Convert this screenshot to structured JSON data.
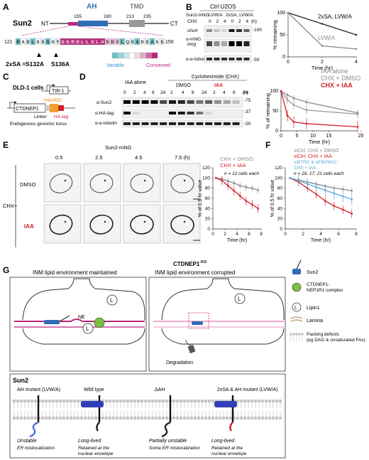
{
  "panels": {
    "A": "A",
    "B": "B",
    "C": "C",
    "D": "D",
    "E": "E",
    "F": "F",
    "G": "G"
  },
  "colors": {
    "red": "#d0202a",
    "blue": "#2f6db5",
    "ltblue": "#5aa8d8",
    "gray": "#8a8a8a",
    "magenta": "#b8267a",
    "green": "#7cc242",
    "orange": "#f0a030",
    "cyan": "#6ec3c9"
  },
  "panelA": {
    "protein": "Sun2",
    "nt": "NT",
    "ct": "CT",
    "ah": "AH",
    "tmd": "TMD",
    "n155": "155",
    "n180": "180",
    "n213": "213",
    "n235": "235",
    "n121": "121",
    "n150": "150",
    "residues": [
      "R",
      "A",
      "D",
      "L",
      "S",
      "S",
      "S",
      "G",
      "Y",
      "S",
      "S",
      "R",
      "D",
      "L",
      "L",
      "S",
      "L",
      "A",
      "S",
      "D",
      "V",
      "L",
      "Q",
      "G",
      "A",
      "D",
      "S",
      "A",
      "S",
      "S"
    ],
    "mutant_label": "2xSA =",
    "mut1": "S132A",
    "mut2": "S136A",
    "variable": "Variable",
    "conserved": "Conserved"
  },
  "panelB": {
    "cell": "Ctrl U2OS",
    "construct": "Sun2-mNG",
    "lvwa": "LVW/A",
    "sa_lvwa": "2xSA, LVW/A",
    "chx": "CHX",
    "times": [
      "0",
      "2",
      "4",
      "0",
      "2",
      "4"
    ],
    "h": "(h)",
    "short": "short",
    "long": "long",
    "amng": "α-mNG",
    "atub": "α-α-tubulin",
    "mw100": "-100",
    "mw50": "-50"
  },
  "chartB": {
    "type": "line",
    "ylabel": "% remaining",
    "xlabel": "Time (hr)",
    "x": [
      0,
      2,
      4
    ],
    "xlim": [
      0,
      4
    ],
    "ylim": [
      0,
      100
    ],
    "yticks": [
      0,
      50,
      100
    ],
    "xticks": [
      0,
      2,
      4
    ],
    "series": [
      {
        "name": "2xSA, LVW/A",
        "values": [
          100,
          75,
          50
        ]
      },
      {
        "name": "LVW/A",
        "values": [
          100,
          25,
          18
        ]
      }
    ]
  },
  "panelC": {
    "cells": "DLD-1 cells",
    "tir": "TIR-1",
    "gene": "CTDNEP1",
    "miniaid": "miniAID",
    "linker": "Linker",
    "hatag": "HA-tag",
    "locus": "Endogenous genomic locus"
  },
  "panelD": {
    "iaa_alone": "IAA alone",
    "chx": "Cycloheximide (CHX)",
    "dmso": "DMSO",
    "iaa": "IAA",
    "times": [
      "0",
      "2",
      "4",
      "8",
      "24",
      "2",
      "4",
      "8",
      "24",
      "2",
      "4",
      "8",
      "24"
    ],
    "h": "(h)",
    "asun2": "α-Sun2",
    "aha": "α-HA-tag",
    "atub": "α-α-tubulin",
    "mw75": "-75",
    "mw37": "-37",
    "mw50": "-50"
  },
  "chartD": {
    "type": "line",
    "ylabel": "% of remaining",
    "xlabel": "Time (hr)",
    "x": [
      0,
      2,
      4,
      8,
      24
    ],
    "xlim": [
      0,
      24
    ],
    "ylim": [
      0,
      100
    ],
    "yticks": [
      0,
      50,
      100
    ],
    "xticks": [
      0,
      5,
      10,
      15,
      25
    ],
    "series": [
      {
        "name": "IAA alone",
        "values": [
          100,
          90,
          82,
          72,
          45
        ]
      },
      {
        "name": "CHX + DMSO",
        "values": [
          100,
          78,
          65,
          52,
          42
        ]
      },
      {
        "name": "CHX + IAA",
        "values": [
          100,
          38,
          22,
          18,
          10
        ]
      }
    ]
  },
  "panelE": {
    "construct": "Sun2-mNG",
    "times": [
      "0.5",
      "2.5",
      "4.5",
      "7.5 (h)"
    ],
    "chx": "CHX+",
    "dmso": "DMSO",
    "iaa": "IAA"
  },
  "chartE": {
    "type": "line",
    "ylabel": "% of 0.5 hr value",
    "xlabel": "Time (hr)",
    "n": "n = 12 cells each",
    "x": [
      0.5,
      1.5,
      2.5,
      3.5,
      4.5,
      5.5,
      6.5,
      7.5
    ],
    "xlim": [
      0,
      8
    ],
    "ylim": [
      0,
      120
    ],
    "yticks": [
      0,
      20,
      40,
      60,
      80,
      100,
      120
    ],
    "xticks": [
      0,
      2,
      4,
      6,
      8
    ],
    "series": [
      {
        "name": "CHX + DMSO",
        "values": [
          100,
          98,
          94,
          90,
          85,
          82,
          80,
          76
        ]
      },
      {
        "name": "CHX + IAA",
        "values": [
          100,
          95,
          85,
          75,
          65,
          55,
          48,
          40
        ]
      }
    ]
  },
  "chartF": {
    "type": "line",
    "ylabel": "% of 0.5 hr value",
    "xlabel": "Time (hr)",
    "n": "n = 16, 17, 21 cells each",
    "x": [
      0.5,
      1.5,
      2.5,
      3.5,
      4.5,
      5.5,
      6.5,
      7.5
    ],
    "xlim": [
      0,
      8
    ],
    "ylim": [
      0,
      120
    ],
    "yticks": [
      0,
      20,
      40,
      60,
      80,
      100,
      120
    ],
    "xticks": [
      0,
      2,
      4,
      6,
      8
    ],
    "series": [
      {
        "name": "siCtrl: CHX + DMSO",
        "values": [
          100,
          96,
          92,
          88,
          84,
          80,
          78,
          75
        ]
      },
      {
        "name": "siCtrl: CHX + IAA",
        "values": [
          100,
          92,
          80,
          68,
          55,
          45,
          38,
          30
        ]
      },
      {
        "name": "siBTRC & siFBXW11: CHX + IAA",
        "values": [
          100,
          95,
          88,
          82,
          76,
          70,
          64,
          58
        ]
      }
    ]
  },
  "panelG": {
    "box1": "INM lipid environment maintained",
    "ko": "CTDNEP1",
    "ko_sup": "KO",
    "box2": "INM lipid environment corrupted",
    "ne": "NE",
    "degradation": "Degradation",
    "legend": [
      {
        "label": "Sun2"
      },
      {
        "label": "CTDNEP1-\nNEP1R1 complex"
      },
      {
        "label": "Lipin1"
      },
      {
        "label": "Lamina"
      },
      {
        "label": "Packing defects\n(eg DAG & unsaturated FAs)"
      }
    ],
    "sun2": "Sun2",
    "cols": [
      {
        "title": "AH mutant (LVW/A)",
        "l1": "Unstable",
        "l2": "ER mislocalization"
      },
      {
        "title": "Wild type",
        "l1": "Long-lived",
        "l2": "Retained at the nuclear envelope"
      },
      {
        "title": "ΔAH",
        "l1": "Partially unstable",
        "l2": "Some ER mislocalization"
      },
      {
        "title": "2xSA & AH mutant (LVW/A)",
        "l1": "Long-lived",
        "l2": "Retained at the nuclear envelope"
      }
    ]
  }
}
